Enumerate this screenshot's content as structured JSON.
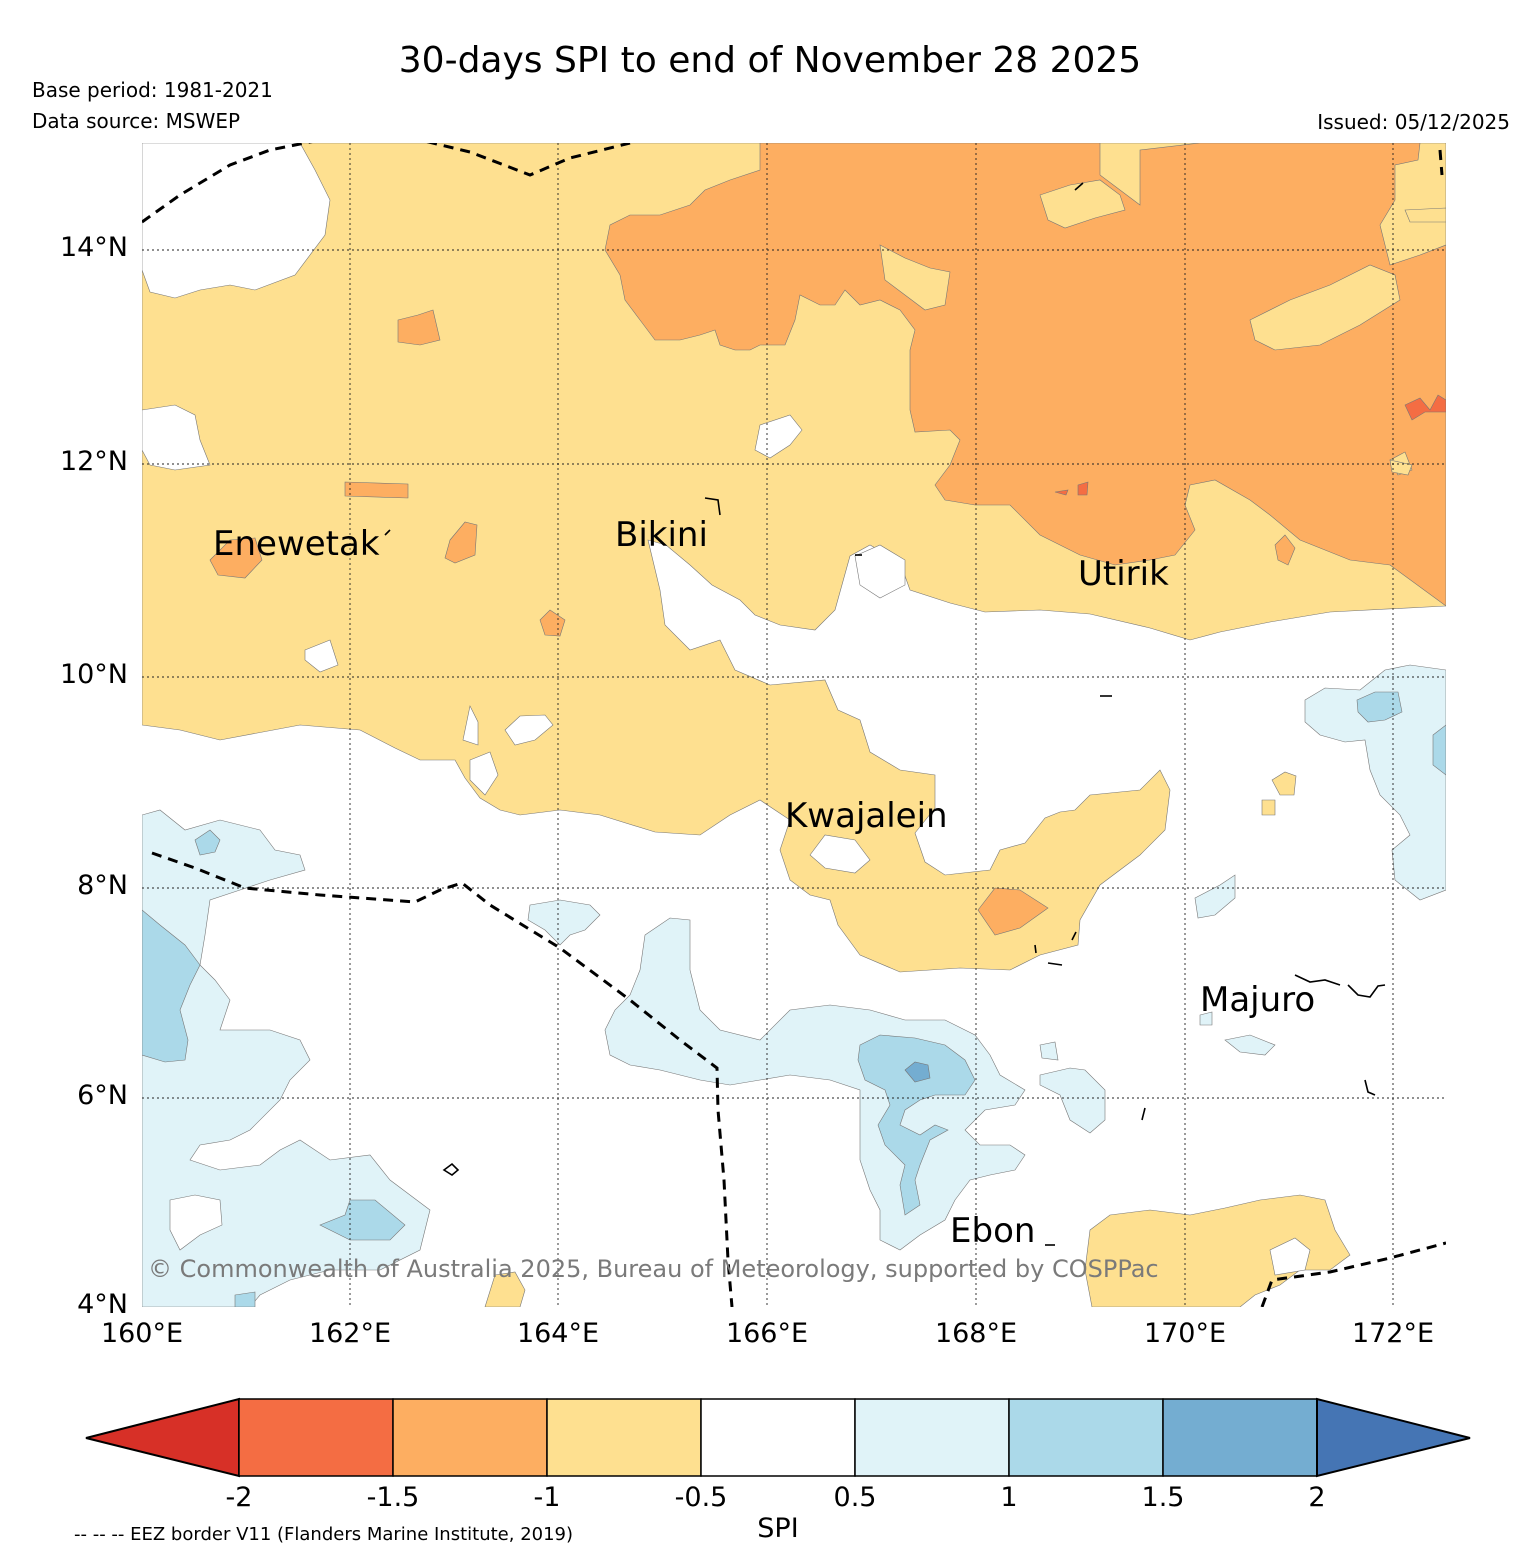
{
  "title": "30-days SPI to end of November 28 2025",
  "base_period": "Base period: 1981-2021",
  "data_source": "Data source: MSWEP",
  "issued": "Issued: 05/12/2025",
  "copyright": "© Commonwealth of Australia 2025, Bureau of Meteorology, supported by COSPPac",
  "eez_note": "-- -- -- EEZ border V11 (Flanders Marine Institute, 2019)",
  "map": {
    "lat_labels": [
      "14°N",
      "12°N",
      "10°N",
      "8°N",
      "6°N",
      "4°N"
    ],
    "lon_labels": [
      "160°E",
      "162°E",
      "164°E",
      "166°E",
      "168°E",
      "170°E",
      "172°E"
    ],
    "places": [
      {
        "name": "Enewetak"
      },
      {
        "name": "Bikini"
      },
      {
        "name": "Utirik"
      },
      {
        "name": "Kwajalein"
      },
      {
        "name": "Majuro"
      },
      {
        "name": "Ebon"
      }
    ]
  },
  "colorbar": {
    "title": "SPI",
    "tick_labels": [
      "-2",
      "-1.5",
      "-1",
      "-0.5",
      "0.5",
      "1",
      "1.5",
      "2"
    ],
    "colors": [
      "#d73027",
      "#f46d43",
      "#fdae61",
      "#fee090",
      "#ffffff",
      "#e0f3f8",
      "#abd9e9",
      "#74add1",
      "#4575b4"
    ]
  },
  "colors": {
    "spi_-1_to_-0.5": "#fee090",
    "spi_-1.5_to_-1": "#fdae61",
    "spi_-2_to_-1.5": "#f46d43",
    "spi_0.5_to_1": "#e0f3f8",
    "spi_1_to_1.5": "#abd9e9",
    "spi_1.5_to_2": "#74add1"
  }
}
